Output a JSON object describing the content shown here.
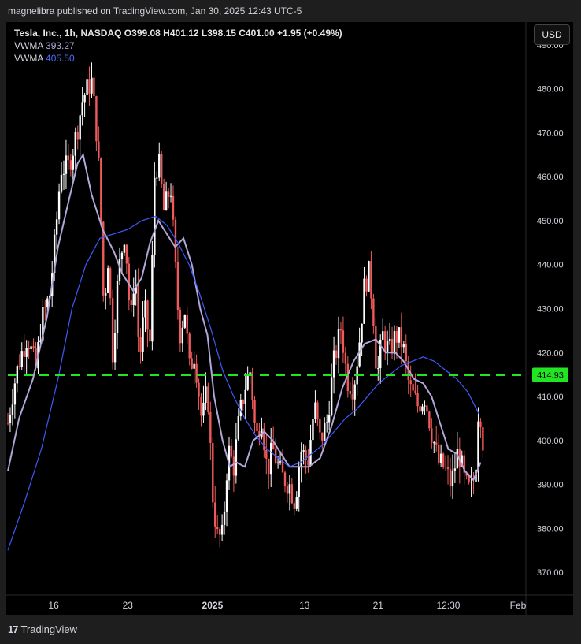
{
  "header": {
    "published": "magnelibra published on TradingView.com, Jan 30, 2025 12:43 UTC-5"
  },
  "legend": {
    "main": "Tesla, Inc., 1h, NASDAQ  O399.08  H401.12  L398.15  C401.00  +1.95 (+0.49%)",
    "vwma1_label": "VWMA",
    "vwma1_value": "393.27",
    "vwma2_label": "VWMA",
    "vwma2_value": "405.50"
  },
  "currency_button": "USD",
  "footer": {
    "logo": "17",
    "brand": "TradingView"
  },
  "colors": {
    "up": "#ffffff",
    "down": "#f05a5a",
    "vwma_fast": "#b2a7d8",
    "vwma_slow": "#3d5afe",
    "level": "#22e522",
    "level_tag": "#22e522"
  },
  "chart_data": {
    "type": "line",
    "title": "Tesla, Inc., 1h, NASDAQ",
    "ylim": [
      365,
      495
    ],
    "yticks": [
      {
        "value": 490,
        "label": "490.00"
      },
      {
        "value": 480,
        "label": "480.00"
      },
      {
        "value": 470,
        "label": "470.00"
      },
      {
        "value": 460,
        "label": "460.00"
      },
      {
        "value": 450,
        "label": "450.00"
      },
      {
        "value": 440,
        "label": "440.00"
      },
      {
        "value": 430,
        "label": "430.00"
      },
      {
        "value": 420,
        "label": "420.00"
      },
      {
        "value": 410,
        "label": "410.00"
      },
      {
        "value": 400,
        "label": "400.00"
      },
      {
        "value": 390,
        "label": "390.00"
      },
      {
        "value": 380,
        "label": "380.00"
      },
      {
        "value": 370,
        "label": "370.00"
      }
    ],
    "xticks": [
      {
        "t": 0.082,
        "label": "16"
      },
      {
        "t": 0.215,
        "label": "23"
      },
      {
        "t": 0.367,
        "label": "2025"
      },
      {
        "t": 0.532,
        "label": "13"
      },
      {
        "t": 0.664,
        "label": "21"
      },
      {
        "t": 0.79,
        "label": "12:30"
      },
      {
        "t": 0.915,
        "label": "Feb"
      }
    ],
    "horizontal_level": {
      "value": 414.93,
      "label": "414.93"
    },
    "price_path": [
      [
        0.0,
        404
      ],
      [
        0.01,
        412
      ],
      [
        0.02,
        418
      ],
      [
        0.035,
        424
      ],
      [
        0.05,
        416
      ],
      [
        0.06,
        427
      ],
      [
        0.075,
        433
      ],
      [
        0.085,
        446
      ],
      [
        0.095,
        462
      ],
      [
        0.108,
        462
      ],
      [
        0.12,
        468
      ],
      [
        0.135,
        478
      ],
      [
        0.15,
        482
      ],
      [
        0.158,
        472
      ],
      [
        0.165,
        458
      ],
      [
        0.172,
        430
      ],
      [
        0.18,
        442
      ],
      [
        0.188,
        420
      ],
      [
        0.198,
        438
      ],
      [
        0.21,
        448
      ],
      [
        0.22,
        426
      ],
      [
        0.228,
        440
      ],
      [
        0.236,
        418
      ],
      [
        0.245,
        430
      ],
      [
        0.255,
        422
      ],
      [
        0.263,
        460
      ],
      [
        0.27,
        464
      ],
      [
        0.28,
        452
      ],
      [
        0.292,
        458
      ],
      [
        0.3,
        440
      ],
      [
        0.308,
        424
      ],
      [
        0.318,
        430
      ],
      [
        0.325,
        416
      ],
      [
        0.335,
        420
      ],
      [
        0.348,
        404
      ],
      [
        0.358,
        412
      ],
      [
        0.368,
        386
      ],
      [
        0.376,
        378
      ],
      [
        0.385,
        378
      ],
      [
        0.395,
        398
      ],
      [
        0.405,
        394
      ],
      [
        0.415,
        405
      ],
      [
        0.425,
        412
      ],
      [
        0.435,
        416
      ],
      [
        0.445,
        400
      ],
      [
        0.455,
        406
      ],
      [
        0.465,
        393
      ],
      [
        0.475,
        398
      ],
      [
        0.49,
        392
      ],
      [
        0.505,
        390
      ],
      [
        0.515,
        386
      ],
      [
        0.525,
        398
      ],
      [
        0.538,
        395
      ],
      [
        0.55,
        408
      ],
      [
        0.56,
        400
      ],
      [
        0.572,
        404
      ],
      [
        0.585,
        418
      ],
      [
        0.598,
        426
      ],
      [
        0.608,
        414
      ],
      [
        0.62,
        412
      ],
      [
        0.63,
        422
      ],
      [
        0.64,
        436
      ],
      [
        0.648,
        438
      ],
      [
        0.655,
        430
      ],
      [
        0.662,
        414
      ],
      [
        0.672,
        424
      ],
      [
        0.684,
        420
      ],
      [
        0.696,
        424
      ],
      [
        0.708,
        422
      ],
      [
        0.72,
        412
      ],
      [
        0.735,
        408
      ],
      [
        0.748,
        410
      ],
      [
        0.76,
        402
      ],
      [
        0.772,
        395
      ],
      [
        0.782,
        394
      ],
      [
        0.795,
        390
      ],
      [
        0.808,
        398
      ],
      [
        0.82,
        390
      ],
      [
        0.83,
        388
      ],
      [
        0.838,
        392
      ],
      [
        0.845,
        410
      ],
      [
        0.852,
        400
      ]
    ],
    "series": [
      {
        "name": "VWMA",
        "color": "#b2a7d8",
        "values": [
          [
            0.0,
            393
          ],
          [
            0.02,
            405
          ],
          [
            0.045,
            414
          ],
          [
            0.07,
            428
          ],
          [
            0.09,
            444
          ],
          [
            0.11,
            455
          ],
          [
            0.125,
            463
          ],
          [
            0.135,
            465
          ],
          [
            0.15,
            456
          ],
          [
            0.17,
            448
          ],
          [
            0.19,
            443
          ],
          [
            0.205,
            438
          ],
          [
            0.225,
            434
          ],
          [
            0.24,
            437
          ],
          [
            0.255,
            445
          ],
          [
            0.27,
            450
          ],
          [
            0.285,
            447
          ],
          [
            0.3,
            444
          ],
          [
            0.315,
            446
          ],
          [
            0.33,
            440
          ],
          [
            0.345,
            430
          ],
          [
            0.358,
            424
          ],
          [
            0.37,
            410
          ],
          [
            0.385,
            400
          ],
          [
            0.398,
            394
          ],
          [
            0.41,
            395
          ],
          [
            0.425,
            394
          ],
          [
            0.44,
            400
          ],
          [
            0.46,
            402
          ],
          [
            0.475,
            400
          ],
          [
            0.49,
            397
          ],
          [
            0.505,
            394
          ],
          [
            0.52,
            394
          ],
          [
            0.54,
            394
          ],
          [
            0.56,
            396
          ],
          [
            0.58,
            403
          ],
          [
            0.6,
            412
          ],
          [
            0.62,
            418
          ],
          [
            0.64,
            422
          ],
          [
            0.66,
            423
          ],
          [
            0.678,
            420
          ],
          [
            0.695,
            420
          ],
          [
            0.71,
            418
          ],
          [
            0.728,
            414
          ],
          [
            0.745,
            413
          ],
          [
            0.76,
            410
          ],
          [
            0.775,
            404
          ],
          [
            0.79,
            398
          ],
          [
            0.805,
            397
          ],
          [
            0.82,
            393
          ],
          [
            0.835,
            391
          ],
          [
            0.848,
            395
          ]
        ]
      },
      {
        "name": "VWMA",
        "color": "#3d5afe",
        "values": [
          [
            0.0,
            375
          ],
          [
            0.03,
            386
          ],
          [
            0.06,
            398
          ],
          [
            0.09,
            414
          ],
          [
            0.115,
            430
          ],
          [
            0.14,
            440
          ],
          [
            0.165,
            446
          ],
          [
            0.19,
            447
          ],
          [
            0.215,
            448
          ],
          [
            0.24,
            450
          ],
          [
            0.265,
            451
          ],
          [
            0.285,
            449
          ],
          [
            0.305,
            445
          ],
          [
            0.325,
            440
          ],
          [
            0.345,
            433
          ],
          [
            0.365,
            425
          ],
          [
            0.385,
            416
          ],
          [
            0.405,
            410
          ],
          [
            0.425,
            405
          ],
          [
            0.445,
            401
          ],
          [
            0.465,
            398
          ],
          [
            0.485,
            396
          ],
          [
            0.505,
            394
          ],
          [
            0.525,
            395
          ],
          [
            0.545,
            397
          ],
          [
            0.565,
            399
          ],
          [
            0.585,
            402
          ],
          [
            0.605,
            405
          ],
          [
            0.625,
            407
          ],
          [
            0.645,
            410
          ],
          [
            0.665,
            413
          ],
          [
            0.685,
            415
          ],
          [
            0.705,
            417
          ],
          [
            0.725,
            418
          ],
          [
            0.745,
            419
          ],
          [
            0.765,
            418
          ],
          [
            0.785,
            416
          ],
          [
            0.805,
            414
          ],
          [
            0.825,
            411
          ],
          [
            0.845,
            406
          ]
        ]
      }
    ],
    "legend": "top-left",
    "grid": false
  }
}
